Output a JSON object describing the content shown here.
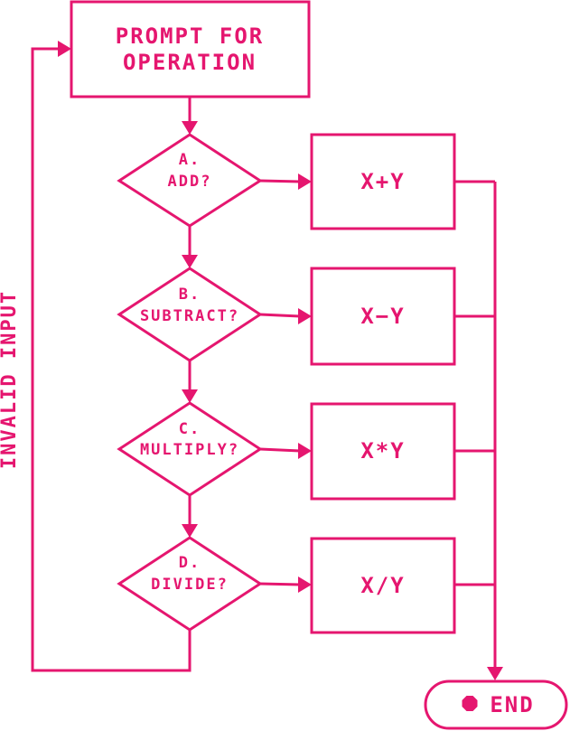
{
  "colors": {
    "accent": "#e5166f",
    "background": "#ffffff"
  },
  "nodes": {
    "prompt": {
      "line1": "PROMPT FOR",
      "line2": "OPERATION"
    },
    "decision_add": {
      "line1": "A.",
      "line2": "ADD?"
    },
    "decision_subtract": {
      "line1": "B.",
      "line2": "SUBTRACT?"
    },
    "decision_multiply": {
      "line1": "C.",
      "line2": "MULTIPLY?"
    },
    "decision_divide": {
      "line1": "D.",
      "line2": "DIVIDE?"
    },
    "op_add": {
      "label": "X+Y"
    },
    "op_subtract": {
      "label": "X−Y"
    },
    "op_multiply": {
      "label": "X*Y"
    },
    "op_divide": {
      "label": "X/Y"
    },
    "end": {
      "label": "END",
      "icon": "stop-icon"
    }
  },
  "edges": {
    "invalid_input": {
      "label": "INVALID INPUT"
    }
  }
}
